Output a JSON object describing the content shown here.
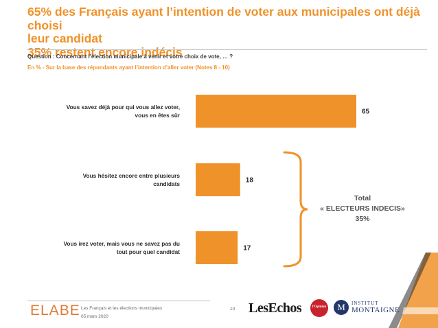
{
  "title": {
    "line1": "65% des Français ayant l’intention de voter aux municipales ont déjà choisi",
    "line2": "leur candidat",
    "line3": "35% restent encore indécis"
  },
  "question": "Question : Concernant l’élection municipale à venir et votre choix de vote, … ?",
  "basis": "En % - Sur la base des répondants ayant l’intention d’aller voter (Notes 8 - 10)",
  "chart_data": {
    "type": "bar",
    "orientation": "horizontal",
    "categories": [
      [
        "Vous savez déjà pour qui vous allez voter,",
        "vous en êtes sûr"
      ],
      [
        "Vous hésitez encore entre plusieurs",
        "candidats"
      ],
      [
        "Vous irez voter, mais vous ne savez pas du",
        "tout pour quel candidat"
      ]
    ],
    "values": [
      65,
      18,
      17
    ],
    "bar_color": "#f0922a",
    "grouping": {
      "bracket_covers": [
        1,
        2
      ],
      "label": [
        "Total",
        "« ELECTEURS INDECIS»",
        "35%"
      ]
    }
  },
  "footer": {
    "brand": "ELABE",
    "line1": "Les Français et les élections municipales",
    "line2": "05 mars 2020",
    "page": "10",
    "partner1": "LesEchos",
    "partner2": "l'Opinion",
    "partner3_initial": "M",
    "partner3_line1": "INSTITUT",
    "partner3_line2": "MONTAIGNE"
  },
  "colors": {
    "accent": "#f0922a",
    "text": "#2b2b2b",
    "muted": "#555555"
  }
}
